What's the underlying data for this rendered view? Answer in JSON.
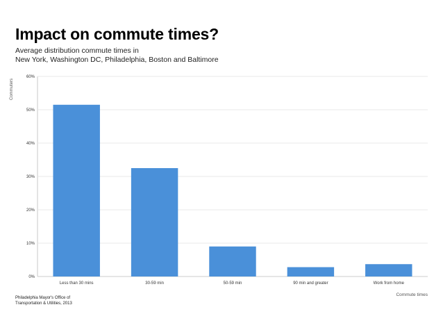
{
  "header": {
    "title": "Impact on commute times?",
    "subtitle_line1": "Average distribution commute times in",
    "subtitle_line2": "New York, Washington DC, Philadelphia, Boston and Baltimore"
  },
  "footer": {
    "source_line1": "Philadelphia Mayor's Office of",
    "source_line2": "Transportation & Utilities, 2013"
  },
  "chart_data": {
    "type": "bar",
    "title": "Impact on commute times?",
    "xlabel": "Commute times",
    "ylabel": "Commuters",
    "categories": [
      "Less than 30 mins",
      "30-59 min",
      "50-59 min",
      "90 min and greater",
      "Work from home"
    ],
    "values": [
      51.5,
      32.5,
      9.0,
      2.8,
      3.7
    ],
    "unit": "%",
    "ylim": [
      0,
      60
    ],
    "yticks": [
      0,
      10,
      20,
      30,
      40,
      50,
      60
    ],
    "ytick_labels": [
      "0%",
      "10%",
      "20%",
      "30%",
      "40%",
      "50%",
      "60%"
    ],
    "grid": true,
    "bar_color": "#4A90D9"
  }
}
